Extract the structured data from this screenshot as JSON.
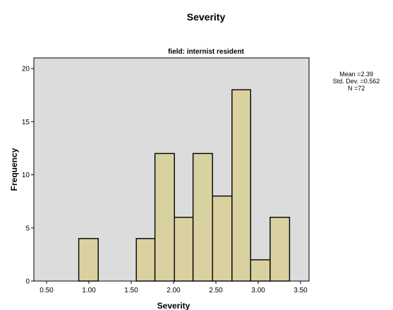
{
  "chart_data": {
    "type": "histogram",
    "title": "Severity",
    "subtitle": "field: internist resident",
    "xlabel": "Severity",
    "ylabel": "Frequency",
    "xlim": [
      0.35,
      3.6
    ],
    "ylim": [
      0,
      21
    ],
    "x_ticks": [
      0.5,
      1.0,
      1.5,
      2.0,
      2.5,
      3.0,
      3.5
    ],
    "x_tick_labels": [
      "0.50",
      "1.00",
      "1.50",
      "2.00",
      "2.50",
      "3.00",
      "3.50"
    ],
    "y_ticks": [
      0,
      5,
      10,
      15,
      20
    ],
    "y_tick_labels": [
      "0",
      "5",
      "10",
      "15",
      "20"
    ],
    "bins": [
      {
        "start": 0.88,
        "end": 1.11,
        "count": 4
      },
      {
        "start": 1.56,
        "end": 1.78,
        "count": 4
      },
      {
        "start": 1.78,
        "end": 2.01,
        "count": 12
      },
      {
        "start": 2.01,
        "end": 2.23,
        "count": 6
      },
      {
        "start": 2.23,
        "end": 2.46,
        "count": 12
      },
      {
        "start": 2.46,
        "end": 2.69,
        "count": 8
      },
      {
        "start": 2.69,
        "end": 2.91,
        "count": 18
      },
      {
        "start": 2.91,
        "end": 3.14,
        "count": 2
      },
      {
        "start": 3.14,
        "end": 3.37,
        "count": 6
      }
    ],
    "stats": {
      "mean": "Mean =2.39",
      "std_dev": "Std. Dev. =0.562",
      "n": "N =72"
    },
    "colors": {
      "bar_fill": "#d9d1a0",
      "plot_background": "#dcdcdc",
      "bar_stroke": "#000000"
    },
    "grid": false
  }
}
